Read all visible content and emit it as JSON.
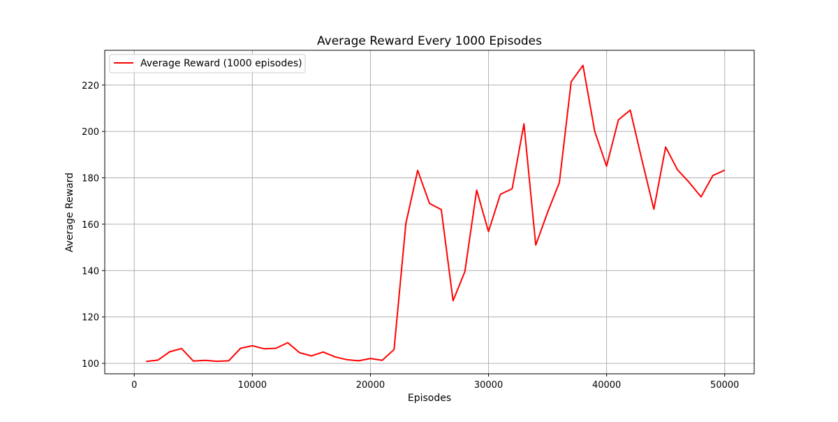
{
  "chart_data": {
    "type": "line",
    "title": "Average Reward Every 1000 Episodes",
    "xlabel": "Episodes",
    "ylabel": "Average Reward",
    "xlim": [
      -2500,
      52500
    ],
    "ylim": [
      95.5,
      235
    ],
    "xticks": [
      0,
      10000,
      20000,
      30000,
      40000,
      50000
    ],
    "yticks": [
      100,
      120,
      140,
      160,
      180,
      200,
      220
    ],
    "grid": true,
    "legend_position": "top-left",
    "series": [
      {
        "name": "Average Reward (1000 episodes)",
        "color": "#ff0000",
        "x": [
          1000,
          2000,
          3000,
          4000,
          5000,
          6000,
          7000,
          8000,
          9000,
          10000,
          11000,
          12000,
          13000,
          14000,
          15000,
          16000,
          17000,
          18000,
          19000,
          20000,
          21000,
          22000,
          23000,
          24000,
          25000,
          26000,
          27000,
          28000,
          29000,
          30000,
          31000,
          32000,
          33000,
          34000,
          35000,
          36000,
          37000,
          38000,
          39000,
          40000,
          41000,
          42000,
          43000,
          44000,
          45000,
          46000,
          47000,
          48000,
          49000,
          50000
        ],
        "values": [
          100.8,
          101.4,
          105.0,
          106.4,
          101.0,
          101.3,
          100.9,
          101.1,
          106.5,
          107.6,
          106.3,
          106.5,
          108.9,
          104.6,
          103.2,
          104.9,
          102.8,
          101.6,
          101.1,
          102.1,
          101.3,
          106.0,
          160.3,
          183.2,
          169.0,
          166.3,
          127.0,
          139.6,
          174.7,
          156.8,
          172.9,
          175.3,
          203.3,
          151.0,
          165.1,
          178.0,
          221.4,
          228.5,
          200.0,
          185.0,
          205.0,
          209.2,
          187.5,
          166.5,
          193.3,
          183.5,
          178.0,
          171.8,
          181.0,
          183.3
        ]
      }
    ]
  }
}
